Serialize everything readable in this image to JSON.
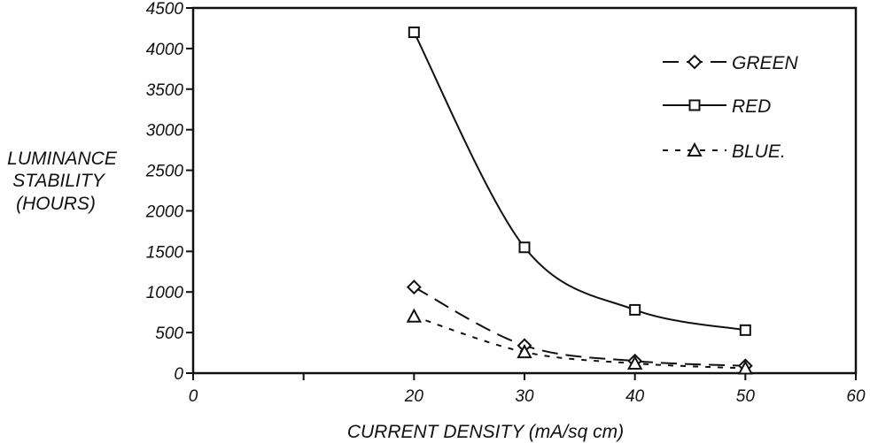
{
  "chart_data": {
    "type": "line",
    "xlabel": "CURRENT DENSITY (mA/sq cm)",
    "ylabel_lines": [
      "LUMINANCE",
      "STABILITY",
      "(HOURS)"
    ],
    "xlim": [
      0,
      60
    ],
    "ylim": [
      0,
      4500
    ],
    "xticks": [
      0,
      10,
      20,
      30,
      40,
      50,
      60
    ],
    "xtick_labels": [
      "0",
      "",
      "20",
      "30",
      "40",
      "50",
      "60"
    ],
    "yticks": [
      0,
      500,
      1000,
      1500,
      2000,
      2500,
      3000,
      3500,
      4000,
      4500
    ],
    "ytick_labels": [
      "0",
      "500",
      "1000",
      "1500",
      "2000",
      "2500",
      "3000",
      "3500",
      "4000",
      "4500"
    ],
    "grid": false,
    "legend_position": "top-right",
    "series": [
      {
        "name": "GREEN",
        "line": "long-dash",
        "marker": "diamond",
        "x": [
          20,
          30,
          40,
          50
        ],
        "y": [
          1060,
          340,
          150,
          90
        ]
      },
      {
        "name": "RED",
        "line": "solid",
        "marker": "square",
        "x": [
          20,
          30,
          40,
          50
        ],
        "y": [
          4200,
          1550,
          780,
          530
        ]
      },
      {
        "name": "BLUE",
        "line": "short-dash",
        "marker": "triangle",
        "x": [
          20,
          30,
          40,
          50
        ],
        "y": [
          700,
          260,
          120,
          60
        ]
      }
    ],
    "legend_labels": [
      "GREEN",
      "RED",
      "BLUE."
    ]
  }
}
